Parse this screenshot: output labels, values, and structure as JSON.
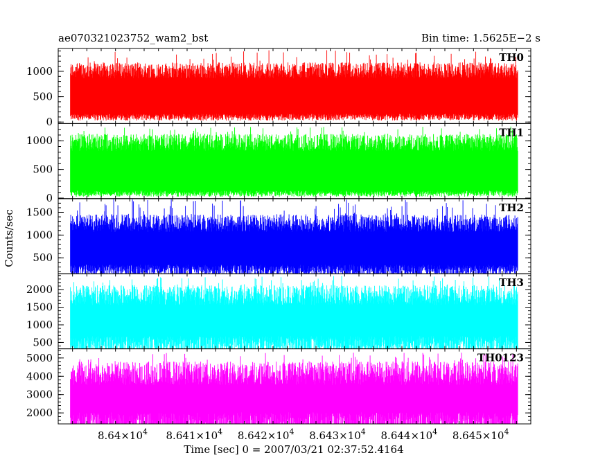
{
  "header": {
    "title": "ae070321023752_wam2_bst",
    "bin_time": "Bin time: 1.5625E−2 s"
  },
  "chart_data": {
    "type": "line",
    "title": "ae070321023752_wam2_bst",
    "xlabel": "Time [sec] 0 = 2007/03/21 02:37:52.4164",
    "ylabel": "Counts/sec",
    "xlim": [
      86391.0,
      86457.0
    ],
    "x_ticks": [
      {
        "value": 86400,
        "mant": "8.64×10",
        "exp": "4"
      },
      {
        "value": 86410,
        "mant": "8.641×10",
        "exp": "4"
      },
      {
        "value": 86420,
        "mant": "8.642×10",
        "exp": "4"
      },
      {
        "value": 86430,
        "mant": "8.643×10",
        "exp": "4"
      },
      {
        "value": 86440,
        "mant": "8.644×10",
        "exp": "4"
      },
      {
        "value": 86450,
        "mant": "8.645×10",
        "exp": "4"
      }
    ],
    "data_range": [
      86392.7,
      86455.2
    ],
    "bin_time_s": 0.015625,
    "panels": [
      {
        "name": "TH0",
        "color": "#ff0000",
        "ylim": [
          -30,
          1450
        ],
        "yticks": [
          0,
          500,
          1000
        ],
        "baseline": 150,
        "typical_peak": 1050,
        "max": 1420
      },
      {
        "name": "TH1",
        "color": "#00ff00",
        "ylim": [
          -10,
          1300
        ],
        "yticks": [
          0,
          500,
          1000
        ],
        "baseline": 120,
        "typical_peak": 1000,
        "max": 1250
      },
      {
        "name": "TH2",
        "color": "#0000ff",
        "ylim": [
          150,
          1800
        ],
        "yticks": [
          500,
          1000,
          1500
        ],
        "baseline": 320,
        "typical_peak": 1300,
        "max": 1800
      },
      {
        "name": "TH3",
        "color": "#00ffff",
        "ylim": [
          320,
          2450
        ],
        "yticks": [
          500,
          1000,
          1500,
          2000
        ],
        "baseline": 620,
        "typical_peak": 1900,
        "max": 2400
      },
      {
        "name": "TH0123",
        "color": "#ff00ff",
        "ylim": [
          1400,
          5500
        ],
        "yticks": [
          2000,
          3000,
          4000,
          5000
        ],
        "baseline": 1850,
        "typical_peak": 4300,
        "max": 5300
      }
    ]
  }
}
